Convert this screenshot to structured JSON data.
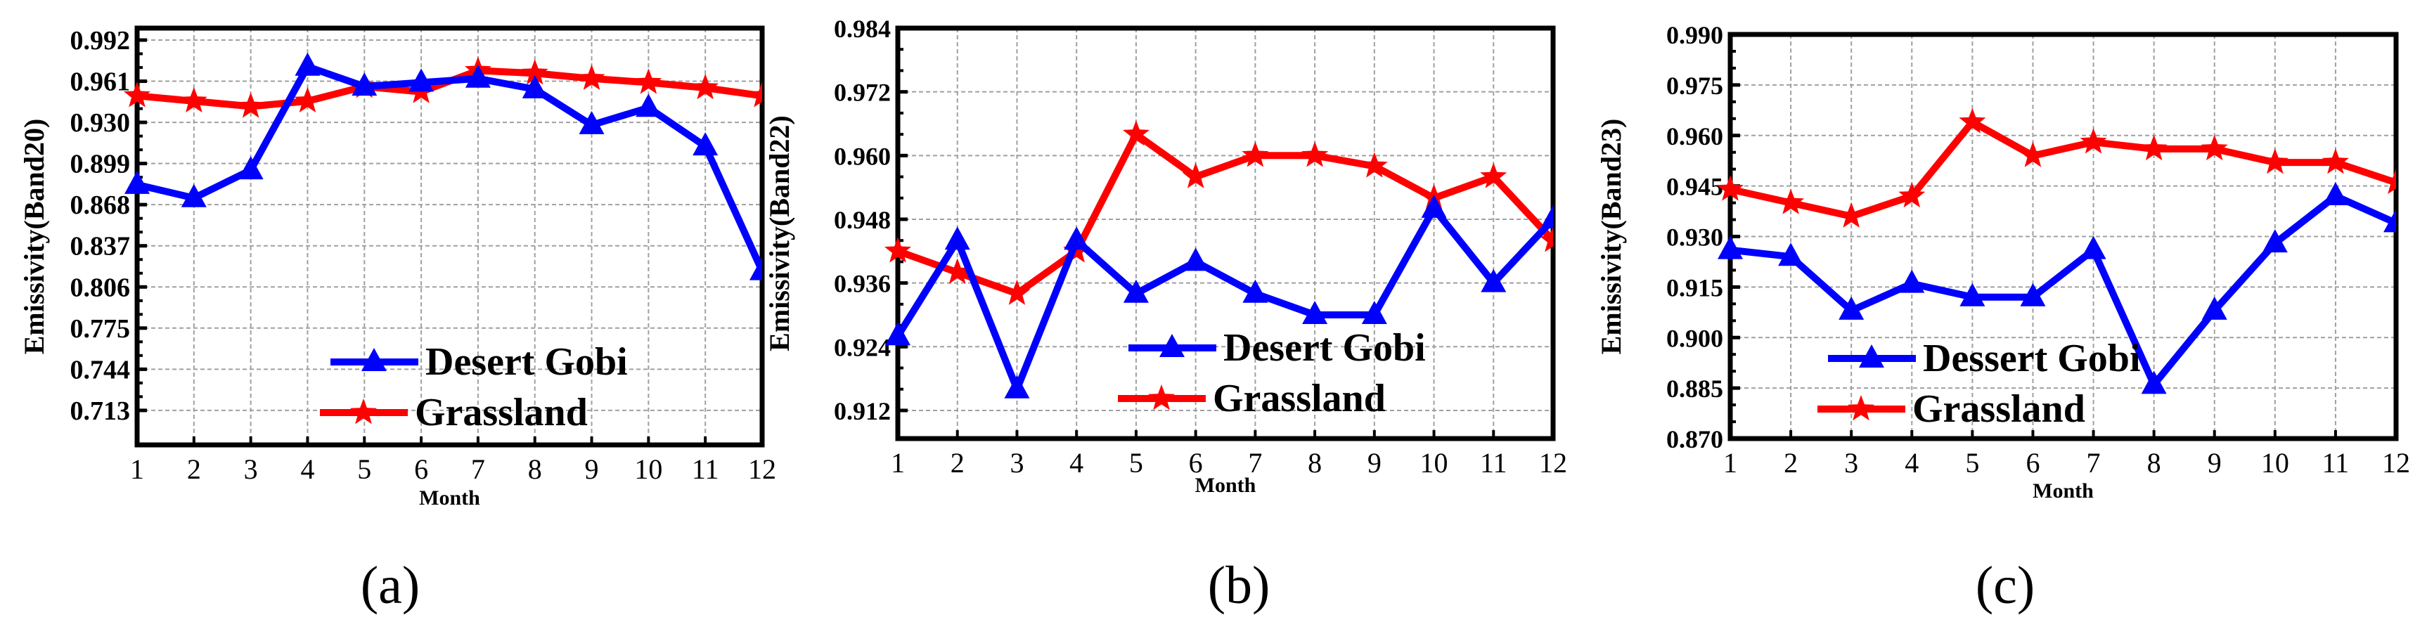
{
  "figure": {
    "captions": [
      "(a)",
      "(b)",
      "(c)"
    ],
    "colors": {
      "desert_gobi": "#0000ff",
      "grassland": "#ff0000",
      "grid": "#a0a0a0",
      "axis": "#000000"
    }
  },
  "chart_data": [
    {
      "type": "line",
      "title": "",
      "caption": "(a)",
      "xlabel": "Month",
      "ylabel": "Emissivity(Band20)",
      "x": [
        1,
        2,
        3,
        4,
        5,
        6,
        7,
        8,
        9,
        10,
        11,
        12
      ],
      "yticks": [
        0.713,
        0.744,
        0.775,
        0.806,
        0.837,
        0.868,
        0.899,
        0.93,
        0.961,
        0.992
      ],
      "ytick_labels": [
        "0.713",
        "0.744",
        "0.775",
        "0.806",
        "0.837",
        "0.868",
        "0.899",
        "0.930",
        "0.961",
        "0.992"
      ],
      "ylim": [
        0.687,
        1.001
      ],
      "xlim": [
        1,
        12
      ],
      "grid": true,
      "legend_position": "lower center",
      "series": [
        {
          "name": "Desert Gobi",
          "marker": "triangle",
          "color": "#0000ff",
          "values": [
            0.883,
            0.873,
            0.894,
            0.972,
            0.957,
            0.96,
            0.963,
            0.955,
            0.928,
            0.941,
            0.912,
            0.818
          ]
        },
        {
          "name": "Grassland",
          "marker": "star",
          "color": "#ff0000",
          "values": [
            0.95,
            0.946,
            0.942,
            0.946,
            0.957,
            0.953,
            0.969,
            0.967,
            0.963,
            0.96,
            0.956,
            0.95
          ]
        }
      ]
    },
    {
      "type": "line",
      "title": "",
      "caption": "(b)",
      "xlabel": "Month",
      "ylabel": "Emissivity(Band22)",
      "x": [
        1,
        2,
        3,
        4,
        5,
        6,
        7,
        8,
        9,
        10,
        11,
        12
      ],
      "yticks": [
        0.912,
        0.924,
        0.936,
        0.948,
        0.96,
        0.972,
        0.984
      ],
      "ytick_labels": [
        "0.912",
        "0.924",
        "0.936",
        "0.948",
        "0.960",
        "0.972",
        "0.984"
      ],
      "ylim": [
        0.9067,
        0.984
      ],
      "xlim": [
        1,
        12
      ],
      "grid": true,
      "legend_position": "lower right",
      "series": [
        {
          "name": "Desert Gobi",
          "marker": "triangle",
          "color": "#0000ff",
          "values": [
            0.926,
            0.944,
            0.916,
            0.944,
            0.934,
            0.94,
            0.934,
            0.93,
            0.93,
            0.95,
            0.936,
            0.948
          ]
        },
        {
          "name": "Grassland",
          "marker": "star",
          "color": "#ff0000",
          "values": [
            0.942,
            0.938,
            0.934,
            0.942,
            0.964,
            0.956,
            0.96,
            0.96,
            0.958,
            0.952,
            0.956,
            0.944
          ]
        }
      ]
    },
    {
      "type": "line",
      "title": "",
      "caption": "(c)",
      "xlabel": "Month",
      "ylabel": "Emissivity(Band23)",
      "x": [
        1,
        2,
        3,
        4,
        5,
        6,
        7,
        8,
        9,
        10,
        11,
        12
      ],
      "yticks": [
        0.87,
        0.885,
        0.9,
        0.915,
        0.93,
        0.945,
        0.96,
        0.975,
        0.99
      ],
      "ytick_labels": [
        "0.870",
        "0.885",
        "0.900",
        "0.915",
        "0.930",
        "0.945",
        "0.960",
        "0.975",
        "0.990"
      ],
      "ylim": [
        0.87,
        0.99
      ],
      "xlim": [
        1,
        12
      ],
      "grid": true,
      "legend_position": "lower left",
      "series": [
        {
          "name": "Dessert Gobi",
          "marker": "triangle",
          "color": "#0000ff",
          "values": [
            0.926,
            0.924,
            0.908,
            0.916,
            0.912,
            0.912,
            0.926,
            0.886,
            0.908,
            0.928,
            0.942,
            0.934
          ]
        },
        {
          "name": "Grassland",
          "marker": "star",
          "color": "#ff0000",
          "values": [
            0.944,
            0.94,
            0.936,
            0.942,
            0.964,
            0.954,
            0.958,
            0.956,
            0.956,
            0.952,
            0.952,
            0.946
          ]
        }
      ]
    }
  ]
}
